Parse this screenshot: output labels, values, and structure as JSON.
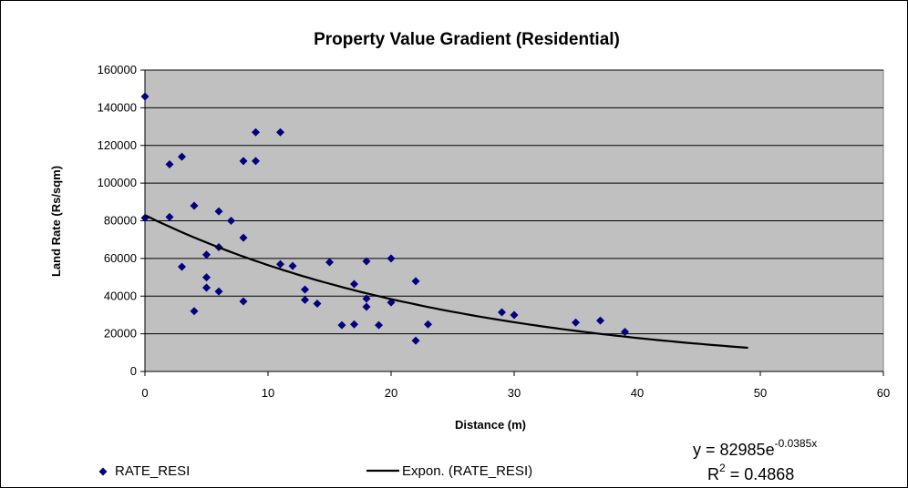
{
  "chart_data": {
    "type": "scatter",
    "title": "Property Value Gradient (Residential)",
    "x_label": "Distance (m)",
    "y_label": "Land Rate (Rs/sqm)",
    "xlim": [
      0,
      60
    ],
    "ylim": [
      0,
      160000
    ],
    "xticks": [
      0,
      10,
      20,
      30,
      40,
      50,
      60
    ],
    "yticks": [
      0,
      20000,
      40000,
      60000,
      80000,
      100000,
      120000,
      140000,
      160000
    ],
    "grid": true,
    "plot_background": "#c0c0c0",
    "series": [
      {
        "name": "RATE_RESI",
        "color": "#000080",
        "x": [
          0,
          0,
          2,
          2,
          3,
          3,
          4,
          4,
          5,
          5,
          5,
          6,
          6,
          6,
          7,
          8,
          8,
          8,
          9,
          9,
          11,
          11,
          12,
          13,
          13,
          14,
          15,
          16,
          17,
          17,
          18,
          18,
          18,
          19,
          20,
          20,
          22,
          22,
          23,
          29,
          30,
          35,
          37,
          39
        ],
        "values": [
          146000,
          81500,
          110000,
          82000,
          114000,
          55600,
          88000,
          32000,
          62000,
          50000,
          44500,
          85000,
          66000,
          42500,
          80000,
          111700,
          71000,
          37200,
          127000,
          111700,
          127000,
          57000,
          56000,
          43500,
          38000,
          36000,
          58000,
          24600,
          25000,
          46400,
          58500,
          38700,
          34300,
          24600,
          60000,
          36700,
          47900,
          16400,
          25000,
          31400,
          30000,
          26000,
          27000,
          21000
        ]
      }
    ],
    "trendline": {
      "name": "Expon. (RATE_RESI)",
      "color": "#000000",
      "a": 82985,
      "b": -0.0385,
      "xrange": [
        0,
        49
      ],
      "equation": "y = 82985e",
      "equation_exponent": "-0.0385x",
      "r2_base": "R",
      "r2_exponent": "2",
      "r2_rest": " = 0.4868"
    }
  }
}
